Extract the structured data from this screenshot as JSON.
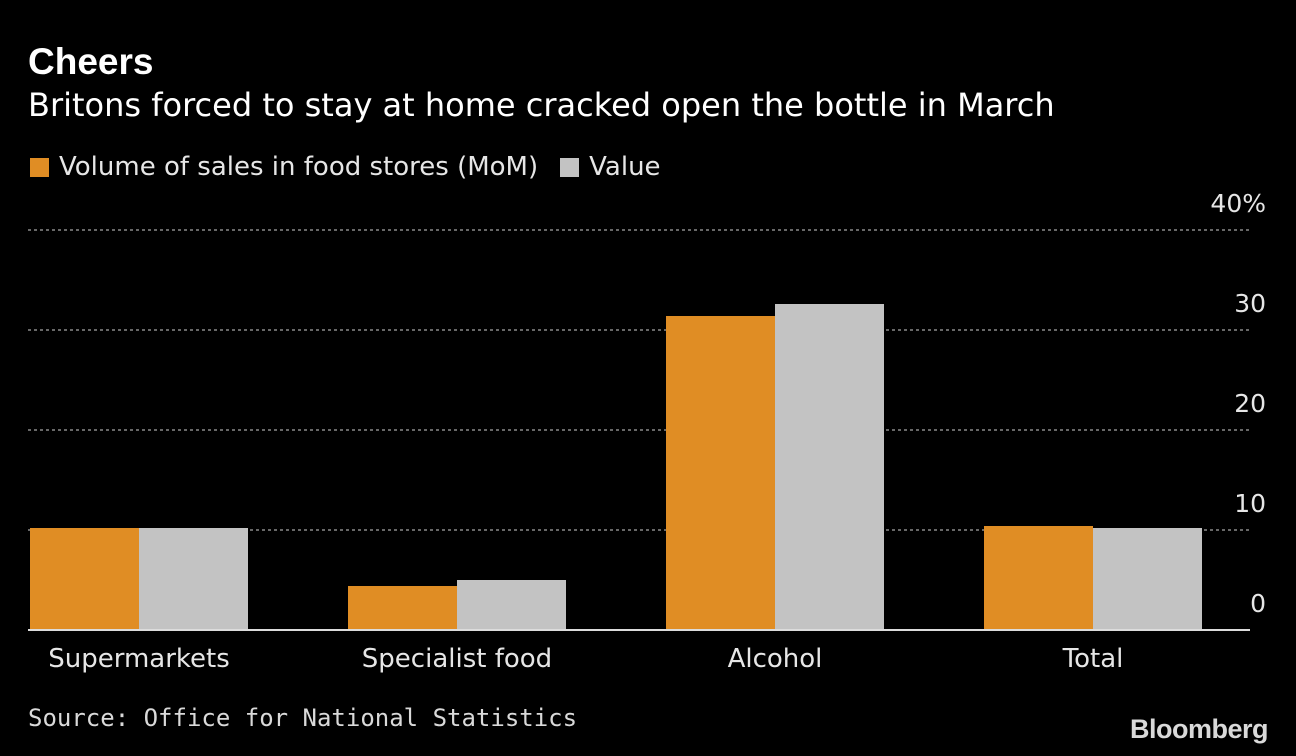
{
  "header": {
    "title": "Cheers",
    "subtitle": "Britons forced to stay at home cracked open the bottle in March"
  },
  "colors": {
    "background": "#000000",
    "volume": "#e08d24",
    "value": "#c3c3c3",
    "grid": "#8a8a8a",
    "text": "#ffffff"
  },
  "footer": {
    "source": "Source: Office for National Statistics",
    "brand": "Bloomberg"
  },
  "chart_data": {
    "type": "bar",
    "categories": [
      "Supermarkets",
      "Specialist food",
      "Alcohol",
      "Total"
    ],
    "series": [
      {
        "name": "Volume of sales in food stores (MoM)",
        "values": [
          10.2,
          4.4,
          31.4,
          10.4
        ]
      },
      {
        "name": "Value",
        "values": [
          10.2,
          5.0,
          32.6,
          10.2
        ]
      }
    ],
    "ylim": [
      0,
      40
    ],
    "yticks": [
      0,
      10,
      20,
      30,
      40
    ],
    "ytick_labels": [
      "0",
      "10",
      "20",
      "30",
      "40%"
    ],
    "grid": true,
    "legend_position": "top-left",
    "xlabel": "",
    "ylabel": ""
  }
}
